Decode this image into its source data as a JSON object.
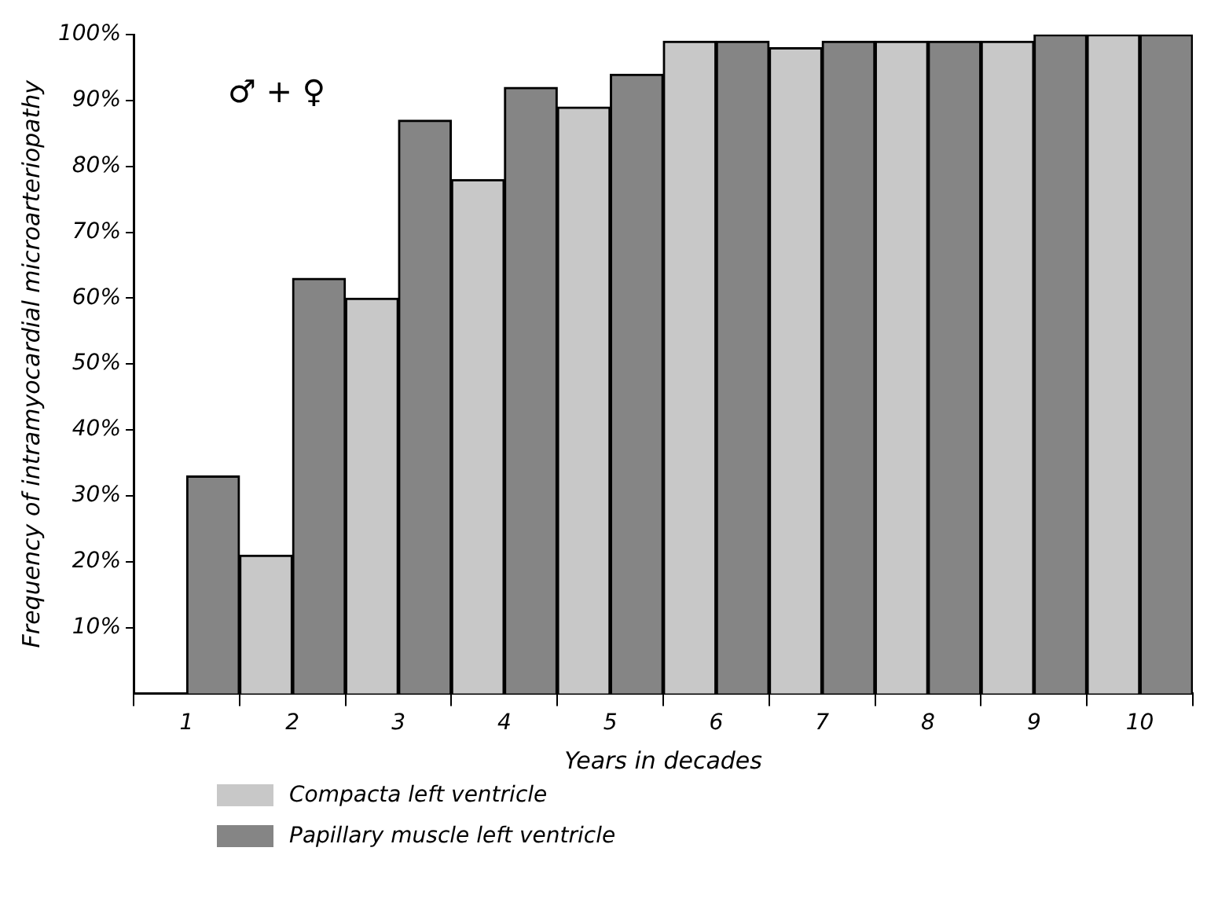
{
  "chart_data": {
    "type": "bar",
    "ylabel": "Frequency of intramyocardial microarteriopathy",
    "xlabel": "Years in decades",
    "categories": [
      "1",
      "2",
      "3",
      "4",
      "5",
      "6",
      "7",
      "8",
      "9",
      "10"
    ],
    "series": [
      {
        "name": "Compacta left ventricle",
        "color": "#c8c8c8",
        "values": [
          0,
          21,
          60,
          78,
          89,
          99,
          98,
          99,
          99,
          100
        ]
      },
      {
        "name": "Papillary muscle left ventricle",
        "color": "#858585",
        "values": [
          33,
          63,
          87,
          92,
          94,
          99,
          99,
          99,
          100,
          100
        ]
      }
    ],
    "ylim": [
      0,
      100
    ],
    "yticks": [
      {
        "value": 10,
        "label": "10%"
      },
      {
        "value": 20,
        "label": "20%"
      },
      {
        "value": 30,
        "label": "30%"
      },
      {
        "value": 40,
        "label": "40%"
      },
      {
        "value": 50,
        "label": "50%"
      },
      {
        "value": 60,
        "label": "60%"
      },
      {
        "value": 70,
        "label": "70%"
      },
      {
        "value": 80,
        "label": "80%"
      },
      {
        "value": 90,
        "label": "90%"
      },
      {
        "value": 100,
        "label": "100%"
      }
    ],
    "annotations": [
      "♂ + ♀"
    ],
    "grid": false,
    "legend": "bottom left"
  }
}
